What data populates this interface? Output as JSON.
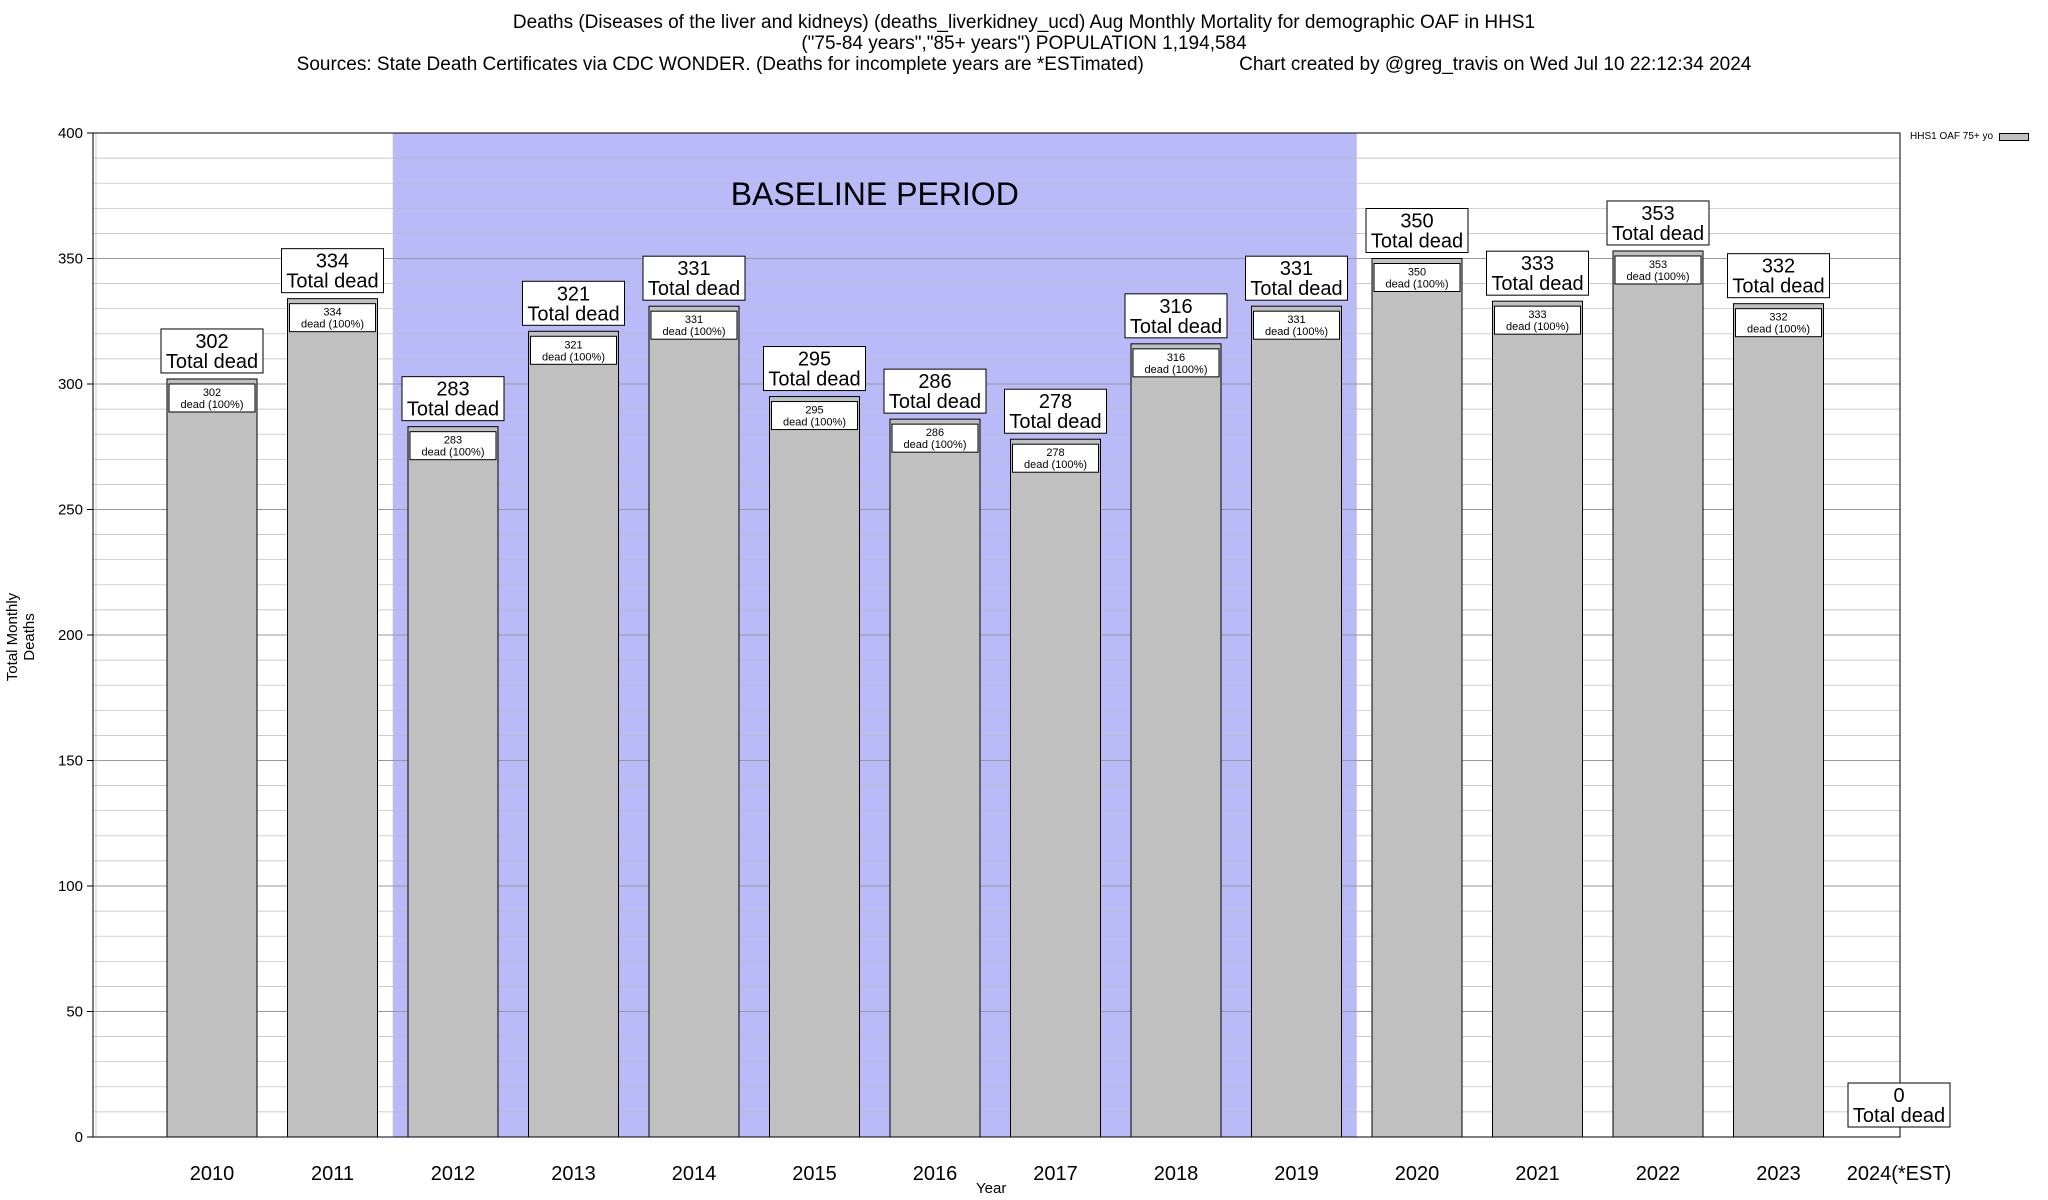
{
  "title": {
    "line1": "Deaths (Diseases of the liver and kidneys) (deaths_liverkidney_ucd) Aug Monthly Mortality for demographic OAF in HHS1",
    "line2": "(\"75-84 years\",\"85+ years\") POPULATION 1,194,584",
    "line3_source": "Sources: State Death Certificates via CDC WONDER. (Deaths for incomplete years are *ESTimated)",
    "line3_credit": "Chart created by @greg_travis on Wed Jul 10 22:12:34 2024"
  },
  "chart_data": {
    "type": "bar",
    "categories": [
      "2010",
      "2011",
      "2012",
      "2013",
      "2014",
      "2015",
      "2016",
      "2017",
      "2018",
      "2019",
      "2020",
      "2021",
      "2022",
      "2023",
      "2024(*EST)"
    ],
    "series": [
      {
        "name": "HHS1 OAF 75+ yo",
        "values": [
          302,
          334,
          283,
          321,
          331,
          295,
          286,
          278,
          316,
          331,
          350,
          333,
          353,
          332,
          0
        ]
      }
    ],
    "xlabel": "Year",
    "ylabel": "Total Monthly Deaths",
    "ylim": [
      0,
      400
    ],
    "yticks": [
      0,
      50,
      100,
      150,
      200,
      250,
      300,
      350,
      400
    ],
    "grid": true,
    "legend_position": "top-right",
    "annotation_label": "Total dead",
    "inner_label_suffix": "dead (100%)",
    "baseline": {
      "label": "BASELINE PERIOD",
      "from": "2012",
      "to": "2019",
      "color": "#babaf8"
    },
    "bar_color": "#c0c0c0"
  }
}
